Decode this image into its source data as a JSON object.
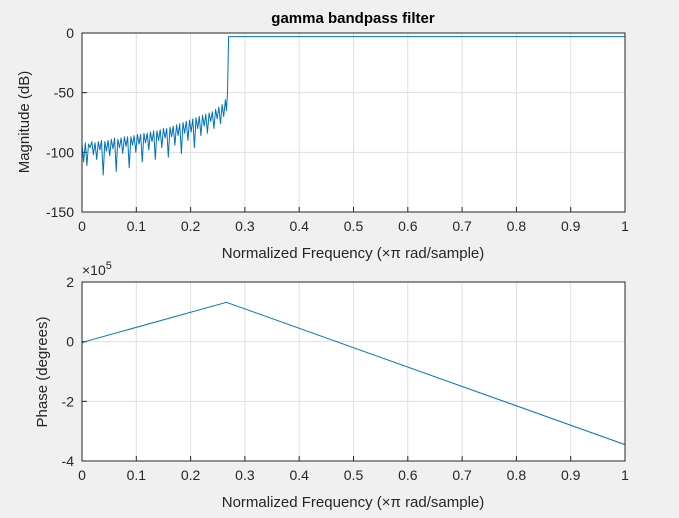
{
  "chart_data": [
    {
      "type": "line",
      "title": "gamma bandpass filter",
      "xlabel": "Normalized Frequency  (×π rad/sample)",
      "ylabel": "Magnitude (dB)",
      "xlim": [
        0,
        1
      ],
      "ylim": [
        -150,
        0
      ],
      "xticks": [
        0,
        0.1,
        0.2,
        0.3,
        0.4,
        0.5,
        0.6,
        0.7,
        0.8,
        0.9,
        1
      ],
      "xtick_labels": [
        "0",
        "0.1",
        "0.2",
        "0.3",
        "0.4",
        "0.5",
        "0.6",
        "0.7",
        "0.8",
        "0.9",
        "1"
      ],
      "yticks": [
        -150,
        -100,
        -50,
        0
      ],
      "ytick_labels": [
        "-150",
        "-100",
        "-50",
        "0"
      ],
      "grid": true,
      "line_color": "#0072bd",
      "series": [
        {
          "x": [
            0,
            0.003,
            0.006,
            0.009,
            0.012,
            0.015,
            0.018,
            0.021,
            0.024,
            0.027,
            0.03,
            0.033,
            0.036,
            0.039,
            0.042,
            0.045,
            0.048,
            0.051,
            0.054,
            0.057,
            0.06,
            0.063,
            0.066,
            0.069,
            0.072,
            0.075,
            0.078,
            0.081,
            0.084,
            0.087,
            0.09,
            0.093,
            0.096,
            0.099,
            0.102,
            0.105,
            0.108,
            0.111,
            0.114,
            0.117,
            0.12,
            0.123,
            0.126,
            0.129,
            0.132,
            0.135,
            0.138,
            0.141,
            0.144,
            0.147,
            0.15,
            0.153,
            0.156,
            0.159,
            0.162,
            0.165,
            0.168,
            0.171,
            0.174,
            0.177,
            0.18,
            0.183,
            0.186,
            0.189,
            0.192,
            0.195,
            0.198,
            0.201,
            0.204,
            0.207,
            0.21,
            0.213,
            0.216,
            0.219,
            0.222,
            0.225,
            0.228,
            0.231,
            0.234,
            0.237,
            0.24,
            0.243,
            0.246,
            0.249,
            0.252,
            0.255,
            0.258,
            0.261,
            0.264,
            0.266,
            0.268,
            0.27,
            0.3,
            0.4,
            0.5,
            0.6,
            0.7,
            0.8,
            0.9,
            1.0
          ],
          "y": [
            -93,
            -108,
            -92,
            -111,
            -93,
            -96,
            -91,
            -102,
            -92,
            -106,
            -91,
            -98,
            -90,
            -119,
            -91,
            -99,
            -90,
            -103,
            -89,
            -97,
            -88,
            -116,
            -89,
            -96,
            -88,
            -101,
            -87,
            -95,
            -87,
            -113,
            -87,
            -94,
            -86,
            -100,
            -85,
            -93,
            -85,
            -108,
            -84,
            -92,
            -84,
            -98,
            -83,
            -91,
            -82,
            -106,
            -82,
            -90,
            -81,
            -96,
            -80,
            -88,
            -80,
            -104,
            -79,
            -87,
            -78,
            -94,
            -77,
            -86,
            -76,
            -101,
            -75,
            -84,
            -74,
            -90,
            -73,
            -83,
            -72,
            -96,
            -71,
            -80,
            -70,
            -86,
            -69,
            -78,
            -68,
            -84,
            -67,
            -74,
            -66,
            -80,
            -64,
            -72,
            -62,
            -76,
            -60,
            -70,
            -56,
            -65,
            -50,
            -3,
            -3,
            -3,
            -3,
            -3,
            -3,
            -3,
            -3,
            -3
          ]
        }
      ]
    },
    {
      "type": "line",
      "title": "",
      "xlabel": "Normalized Frequency  (×π rad/sample)",
      "ylabel": "Phase (degrees)",
      "exponent_label": "×10",
      "exponent_power": "5",
      "xlim": [
        0,
        1
      ],
      "ylim": [
        -4,
        2
      ],
      "xticks": [
        0,
        0.1,
        0.2,
        0.3,
        0.4,
        0.5,
        0.6,
        0.7,
        0.8,
        0.9,
        1
      ],
      "xtick_labels": [
        "0",
        "0.1",
        "0.2",
        "0.3",
        "0.4",
        "0.5",
        "0.6",
        "0.7",
        "0.8",
        "0.9",
        "1"
      ],
      "yticks": [
        -4,
        -2,
        0,
        2
      ],
      "ytick_labels": [
        "-4",
        "-2",
        "0",
        "2"
      ],
      "grid": true,
      "line_color": "#0072bd",
      "series": [
        {
          "x": [
            0,
            0.005,
            0.266,
            1.0
          ],
          "y": [
            -0.05,
            0.0,
            1.32,
            -3.45
          ]
        }
      ]
    }
  ]
}
